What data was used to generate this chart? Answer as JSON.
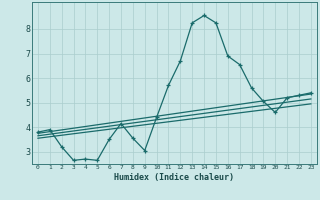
{
  "xlabel": "Humidex (Indice chaleur)",
  "background_color": "#cce8e8",
  "grid_color": "#aacece",
  "line_color": "#1a6b6b",
  "xlim": [
    -0.5,
    23.5
  ],
  "ylim": [
    2.5,
    9.1
  ],
  "yticks": [
    3,
    4,
    5,
    6,
    7,
    8
  ],
  "xticks": [
    0,
    1,
    2,
    3,
    4,
    5,
    6,
    7,
    8,
    9,
    10,
    11,
    12,
    13,
    14,
    15,
    16,
    17,
    18,
    19,
    20,
    21,
    22,
    23
  ],
  "curve_x": [
    0,
    1,
    2,
    3,
    4,
    5,
    6,
    7,
    8,
    9,
    10,
    11,
    12,
    13,
    14,
    15,
    16,
    17,
    18,
    19,
    20,
    21,
    22,
    23
  ],
  "curve_y": [
    3.8,
    3.9,
    3.2,
    2.65,
    2.7,
    2.65,
    3.5,
    4.15,
    3.55,
    3.05,
    4.4,
    5.7,
    6.7,
    8.25,
    8.55,
    8.25,
    6.9,
    6.55,
    5.6,
    5.05,
    4.6,
    5.2,
    5.3,
    5.4
  ],
  "trend1_x": [
    0,
    23
  ],
  "trend1_y": [
    3.75,
    5.35
  ],
  "trend2_x": [
    0,
    23
  ],
  "trend2_y": [
    3.65,
    5.15
  ],
  "trend3_x": [
    0,
    23
  ],
  "trend3_y": [
    3.55,
    4.95
  ]
}
